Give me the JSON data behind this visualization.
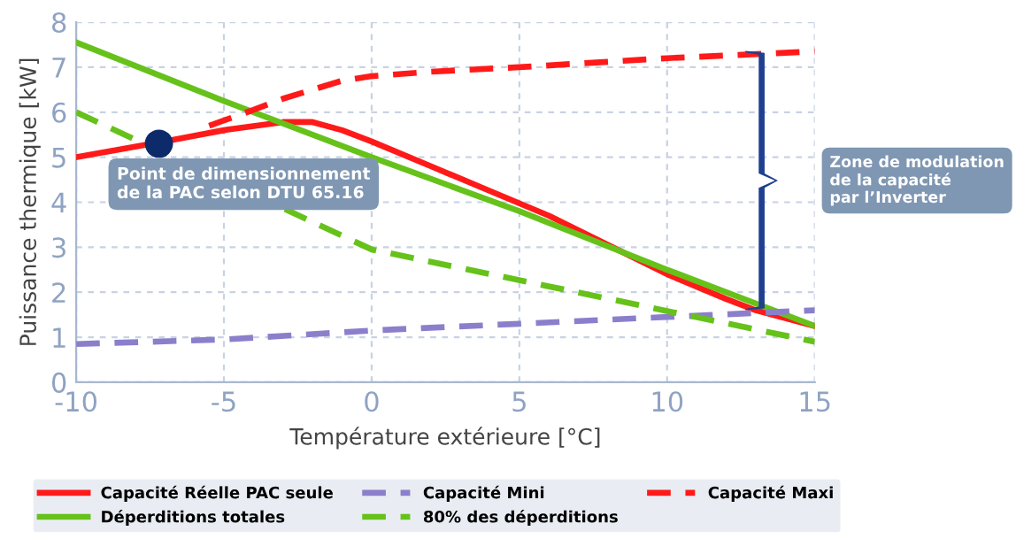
{
  "chart_data": {
    "type": "line",
    "xlabel": "Température extérieure [°C]",
    "ylabel": "Puissance thermique [kW]",
    "xlim": [
      -10,
      15
    ],
    "ylim": [
      0,
      8
    ],
    "xticks": [
      -10,
      -5,
      0,
      5,
      10,
      15
    ],
    "yticks": [
      0,
      1,
      2,
      3,
      4,
      5,
      6,
      7,
      8
    ],
    "grid": true,
    "legend": "bottom",
    "marker": "none",
    "series": [
      {
        "name": "Capacité Réelle PAC seule",
        "color": "#ff1a1a",
        "line_style": "solid",
        "x": [
          -10,
          -7,
          -5,
          -3,
          -2,
          -1,
          0,
          2,
          4,
          6,
          8,
          10,
          12,
          13,
          15
        ],
        "values": [
          5.0,
          5.35,
          5.6,
          5.78,
          5.78,
          5.6,
          5.35,
          4.8,
          4.25,
          3.7,
          3.05,
          2.4,
          1.85,
          1.6,
          1.25
        ]
      },
      {
        "name": "Déperditions totales",
        "color": "#66c21a",
        "line_style": "solid",
        "x": [
          -10,
          -5,
          0,
          5,
          10,
          15
        ],
        "values": [
          7.55,
          6.25,
          5.0,
          3.8,
          2.5,
          1.25
        ]
      },
      {
        "name": "Capacité Mini",
        "color": "#8b7fcc",
        "line_style": "dashed",
        "x": [
          -10,
          -5,
          0,
          5,
          10,
          15
        ],
        "values": [
          0.85,
          0.95,
          1.15,
          1.3,
          1.45,
          1.6
        ]
      },
      {
        "name": "80% des déperditions",
        "color": "#66c21a",
        "line_style": "dashed",
        "x": [
          -10,
          0,
          15
        ],
        "values": [
          6.0,
          2.95,
          0.9
        ]
      },
      {
        "name": "Capacité Maxi",
        "color": "#ff1a1a",
        "line_style": "dashed",
        "x": [
          -5.5,
          -4,
          -3,
          -2,
          -1,
          0,
          2,
          5,
          10,
          15
        ],
        "values": [
          5.7,
          6.05,
          6.3,
          6.5,
          6.7,
          6.8,
          6.9,
          7.0,
          7.2,
          7.35
        ]
      },
      {
        "type": "scatter",
        "color": "#0d2a6b",
        "marker": "circle",
        "x": [
          -7.2
        ],
        "values": [
          5.3
        ]
      }
    ],
    "annotations": [
      "Point de dimensionnement\nde la PAC selon DTU 65.16",
      "Zone de modulation\nde la capacité\npar l’Inverter"
    ]
  }
}
